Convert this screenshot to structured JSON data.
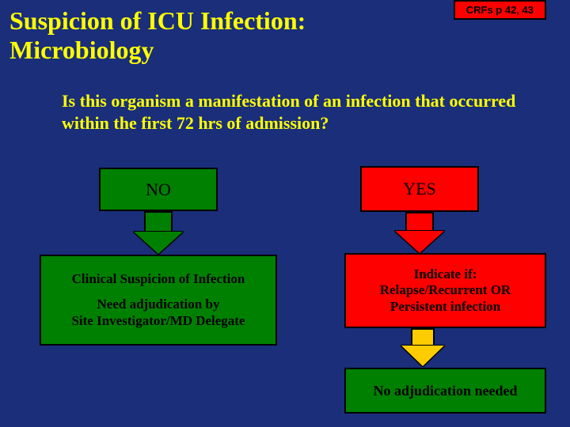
{
  "title": "Suspicion of  ICU Infection: Microbiology",
  "crf": "CRFs p 42, 43",
  "question": " Is this organism a manifestation of an infection that occurred within the first 72 hrs of admission?",
  "decision": {
    "no": "NO",
    "yes": "YES"
  },
  "left_outcome": {
    "line1": "Clinical Suspicion of Infection",
    "line2": "Need adjudication by",
    "line3": "Site Investigator/MD Delegate"
  },
  "right_outcome": {
    "line1": "Indicate if:",
    "line2": "Relapse/Recurrent OR",
    "line3": "Persistent infection"
  },
  "final": "No adjudication needed",
  "colors": {
    "background": "#1a2e7a",
    "text_highlight": "#ffff00",
    "green": "#008000",
    "red": "#ff0000",
    "arrow_yellow": "#ffcc00",
    "border": "#000000"
  }
}
